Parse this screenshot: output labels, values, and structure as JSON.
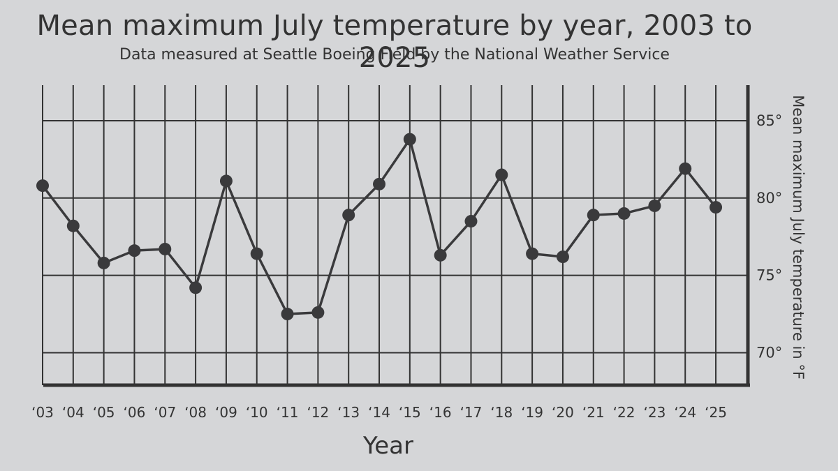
{
  "chart_data": {
    "type": "line",
    "title": "Mean maximum July temperature by year, 2003 to 2025",
    "subtitle": "Data measured at Seattle Boeing Field by the National Weather Service",
    "xlabel": "Year",
    "ylabel": "Mean maximum July temperature in °F",
    "categories": [
      "‘03",
      "‘04",
      "‘05",
      "‘06",
      "‘07",
      "‘08",
      "‘09",
      "‘10",
      "‘11",
      "‘12",
      "‘13",
      "‘14",
      "‘15",
      "‘16",
      "‘17",
      "‘18",
      "‘19",
      "‘20",
      "‘21",
      "‘22",
      "‘23",
      "‘24",
      "‘25"
    ],
    "x": [
      2003,
      2004,
      2005,
      2006,
      2007,
      2008,
      2009,
      2010,
      2011,
      2012,
      2013,
      2014,
      2015,
      2016,
      2017,
      2018,
      2019,
      2020,
      2021,
      2022,
      2023,
      2024,
      2025
    ],
    "values": [
      80.8,
      78.2,
      75.8,
      76.6,
      76.7,
      74.2,
      81.1,
      76.4,
      72.5,
      72.6,
      78.9,
      80.9,
      83.8,
      76.3,
      78.5,
      81.5,
      76.4,
      76.2,
      78.9,
      79.0,
      79.5,
      81.9,
      79.4
    ],
    "yticks": [
      70,
      75,
      80,
      85
    ],
    "ytick_labels": [
      "70°",
      "75°",
      "80°",
      "85°"
    ],
    "ylim": [
      67.9,
      87.3
    ],
    "grid": true,
    "y_axis_side": "right",
    "colors": {
      "line": "#3a3a3c",
      "marker": "#3a3a3c",
      "grid": "#333333",
      "background": "#d5d6d8"
    }
  }
}
